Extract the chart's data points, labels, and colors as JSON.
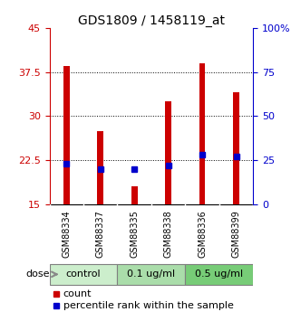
{
  "title": "GDS1809 / 1458119_at",
  "samples": [
    "GSM88334",
    "GSM88337",
    "GSM88335",
    "GSM88338",
    "GSM88336",
    "GSM88399"
  ],
  "red_values": [
    38.5,
    27.5,
    18.0,
    32.5,
    39.0,
    34.0
  ],
  "blue_values": [
    23.0,
    20.0,
    20.0,
    22.0,
    28.0,
    27.0
  ],
  "ylim_left": [
    15,
    45
  ],
  "ylim_right": [
    0,
    100
  ],
  "yticks_left": [
    15,
    22.5,
    30,
    37.5,
    45
  ],
  "yticks_right": [
    0,
    25,
    50,
    75,
    100
  ],
  "groups": [
    {
      "label": "control",
      "indices": [
        0,
        1
      ],
      "color": "#cceecc"
    },
    {
      "label": "0.1 ug/ml",
      "indices": [
        2,
        3
      ],
      "color": "#aaddaa"
    },
    {
      "label": "0.5 ug/ml",
      "indices": [
        4,
        5
      ],
      "color": "#77cc77"
    }
  ],
  "sample_label_bg": "#c8c8c8",
  "red_color": "#cc0000",
  "blue_color": "#0000cc",
  "bar_width": 0.18,
  "blue_marker_size": 5,
  "grid_color": "#000000",
  "axis_bg": "#ffffff",
  "plot_bg": "#ffffff",
  "left_label_color": "#cc0000",
  "right_label_color": "#0000cc",
  "dose_label": "dose",
  "legend_count": "count",
  "legend_percentile": "percentile rank within the sample",
  "title_fontsize": 10,
  "tick_fontsize": 8,
  "label_fontsize": 8,
  "sample_fontsize": 7,
  "group_label_fontsize": 8
}
